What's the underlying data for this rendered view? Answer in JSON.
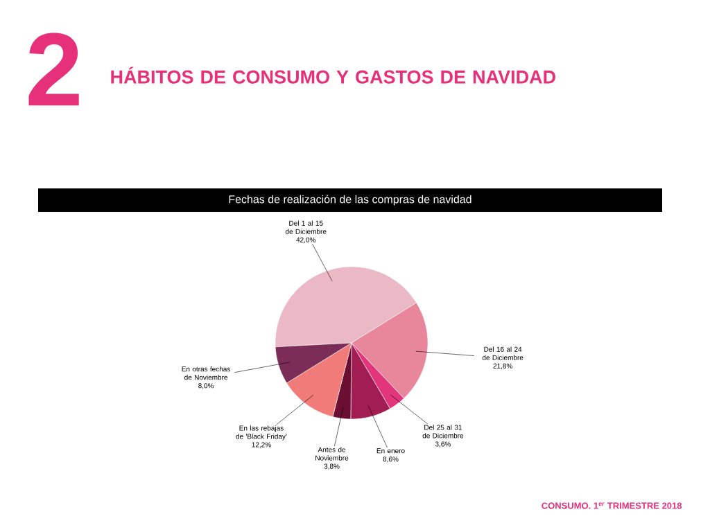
{
  "chart_data": {
    "type": "pie",
    "title": "HÁBITOS DE CONSUMO Y GASTOS DE NAVIDAD",
    "subtitle": "Fechas de realización de las compras de navidad",
    "categories": [
      "Del 1 al 15 de Diciembre",
      "Del 16 al 24 de Diciembre",
      "Del 25 al 31 de Diciembre",
      "En enero",
      "Antes de Noviembre",
      "En las rebajas de 'Black Friday'",
      "En otras fechas de Noviembre"
    ],
    "values": [
      42.0,
      21.8,
      3.6,
      8.6,
      3.8,
      12.2,
      8.0
    ],
    "value_labels": [
      "42,0%",
      "21,8%",
      "3,6%",
      "8,6%",
      "3,8%",
      "12,2%",
      "8,0%"
    ],
    "colors": [
      "#ebb9c5",
      "#e8879b",
      "#e2357b",
      "#a11d52",
      "#6a0f32",
      "#f07b78",
      "#7b2d58"
    ],
    "annotations": [
      "2",
      "CONSUMO. 1$^{er}$ TRIMESTRE 2018"
    ]
  }
}
